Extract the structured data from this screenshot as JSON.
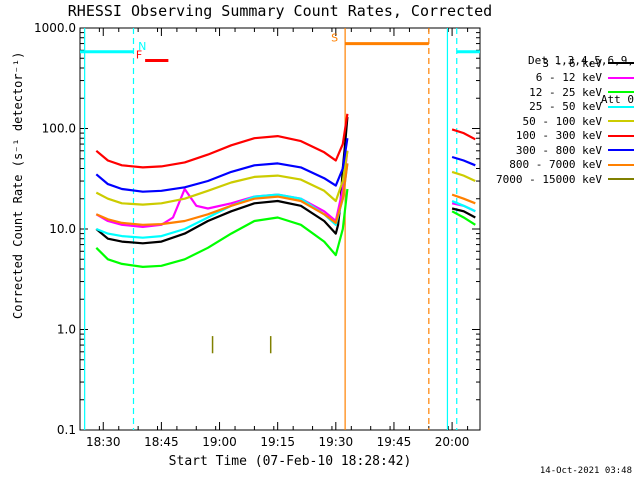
{
  "chart_data": {
    "type": "line",
    "title": "RHESSI Observing Summary Count Rates, Corrected",
    "xlabel": "Start Time (07-Feb-10 18:28:42)",
    "ylabel": "Corrected Count Rate (s⁻¹ detector⁻¹)",
    "y_scale": "log",
    "ylim": [
      0.1,
      1000
    ],
    "x_range_minutes": [
      18.4,
      20.12
    ],
    "x_tick_labels": [
      "18:30",
      "18:45",
      "19:00",
      "19:15",
      "19:30",
      "19:45",
      "20:00"
    ],
    "y_tick_labels": [
      "0.1",
      "1.0",
      "10.0",
      "100.0",
      "1000.0"
    ],
    "legend_header": [
      "Det 1,3,4,5,6,9,",
      "Att 0"
    ],
    "legend_position": "right-outside",
    "series": [
      {
        "name": "3 - 6 keV",
        "color": "#000000",
        "x": [
          18.47,
          18.52,
          18.58,
          18.67,
          18.75,
          18.85,
          18.95,
          19.05,
          19.15,
          19.25,
          19.35,
          19.45,
          19.5,
          19.51,
          19.52,
          19.53,
          19.54,
          19.55
        ],
        "y": [
          10,
          8,
          7.5,
          7.2,
          7.5,
          9,
          12,
          15,
          18,
          19,
          17,
          12,
          9,
          11,
          18,
          40,
          70,
          130
        ]
      },
      {
        "name": "6 - 12 keV",
        "color": "#ff00ff",
        "x": [
          18.47,
          18.52,
          18.58,
          18.67,
          18.75,
          18.8,
          18.85,
          18.9,
          18.95,
          19.05,
          19.15,
          19.25,
          19.35,
          19.45,
          19.5,
          19.53,
          19.55
        ],
        "y": [
          14,
          12,
          11,
          10.5,
          11,
          13,
          25,
          17,
          16,
          18,
          21,
          22,
          20,
          15,
          12,
          25,
          60
        ]
      },
      {
        "name": "12 - 25 keV",
        "color": "#00ff00",
        "x": [
          18.47,
          18.52,
          18.58,
          18.67,
          18.75,
          18.85,
          18.95,
          19.05,
          19.15,
          19.25,
          19.35,
          19.45,
          19.5,
          19.53,
          19.55
        ],
        "y": [
          6.5,
          5,
          4.5,
          4.2,
          4.3,
          5,
          6.5,
          9,
          12,
          13,
          11,
          7.5,
          5.5,
          10,
          25
        ]
      },
      {
        "name": "25 - 50 keV",
        "color": "#00ffff",
        "x": [
          18.47,
          18.52,
          18.58,
          18.67,
          18.75,
          18.85,
          18.95,
          19.05,
          19.15,
          19.25,
          19.35,
          19.45,
          19.5,
          19.53,
          19.55
        ],
        "y": [
          10,
          9,
          8.5,
          8.2,
          8.5,
          10,
          13,
          17,
          21,
          22,
          20,
          14,
          11,
          20,
          45
        ]
      },
      {
        "name": "50 - 100 keV",
        "color": "#cccc00",
        "x": [
          18.47,
          18.52,
          18.58,
          18.67,
          18.75,
          18.85,
          18.95,
          19.05,
          19.15,
          19.25,
          19.35,
          19.45,
          19.5,
          19.53,
          19.55
        ],
        "y": [
          23,
          20,
          18,
          17.5,
          18,
          20,
          24,
          29,
          33,
          34,
          31,
          24,
          19,
          30,
          60
        ]
      },
      {
        "name": "100 - 300 keV",
        "color": "#ff0000",
        "x": [
          18.47,
          18.52,
          18.58,
          18.67,
          18.75,
          18.85,
          18.95,
          19.05,
          19.15,
          19.25,
          19.35,
          19.45,
          19.5,
          19.53,
          19.55
        ],
        "y": [
          60,
          48,
          43,
          41,
          42,
          46,
          55,
          68,
          80,
          84,
          75,
          58,
          48,
          70,
          140
        ]
      },
      {
        "name": "300 - 800 keV",
        "color": "#0000ff",
        "x": [
          18.47,
          18.52,
          18.58,
          18.67,
          18.75,
          18.85,
          18.95,
          19.05,
          19.15,
          19.25,
          19.35,
          19.45,
          19.5,
          19.53,
          19.55
        ],
        "y": [
          35,
          28,
          25,
          23.5,
          24,
          26,
          30,
          37,
          43,
          45,
          41,
          32,
          27,
          40,
          80
        ]
      },
      {
        "name": "800 - 7000 keV",
        "color": "#ff8000",
        "x": [
          18.47,
          18.52,
          18.58,
          18.67,
          18.75,
          18.85,
          18.95,
          19.05,
          19.15,
          19.25,
          19.35,
          19.45,
          19.5,
          19.53,
          19.55
        ],
        "y": [
          14,
          12.5,
          11.5,
          11,
          11.2,
          12,
          14,
          17,
          20,
          21,
          19,
          14,
          11.5,
          20,
          45
        ]
      },
      {
        "name": "7000 - 15000 keV",
        "color": "#808000",
        "x": [],
        "y": []
      }
    ],
    "post_gap_series": [
      {
        "name": "3 - 6 keV",
        "x": [
          20.0,
          20.05,
          20.1
        ],
        "y": [
          16,
          15,
          13
        ]
      },
      {
        "name": "6 - 12 keV",
        "x": [
          20.0,
          20.05,
          20.1
        ],
        "y": [
          18,
          17,
          15
        ]
      },
      {
        "name": "12 - 25 keV",
        "x": [
          20.0,
          20.05,
          20.1
        ],
        "y": [
          15,
          13,
          11
        ]
      },
      {
        "name": "25 - 50 keV",
        "x": [
          20.0,
          20.05,
          20.1
        ],
        "y": [
          19,
          17,
          15
        ]
      },
      {
        "name": "50 - 100 keV",
        "x": [
          20.0,
          20.05,
          20.1
        ],
        "y": [
          37,
          34,
          30
        ]
      },
      {
        "name": "100 - 300 keV",
        "x": [
          20.0,
          20.05,
          20.1
        ],
        "y": [
          98,
          90,
          78
        ]
      },
      {
        "name": "300 - 800 keV",
        "x": [
          20.0,
          20.05,
          20.1
        ],
        "y": [
          52,
          48,
          43
        ]
      },
      {
        "name": "800 - 7000 keV",
        "x": [
          20.0,
          20.05,
          20.1
        ],
        "y": [
          22,
          20,
          18
        ]
      }
    ],
    "olive_spikes": [
      {
        "x": 18.97,
        "y": [
          0.58,
          0.86
        ]
      },
      {
        "x": 19.22,
        "y": [
          0.58,
          0.86
        ]
      }
    ],
    "flags": [
      {
        "label": "N",
        "color": "#00ffff",
        "level_y": 580,
        "segments": [
          [
            18.4,
            18.63
          ],
          [
            20.02,
            20.12
          ]
        ],
        "label_x": 18.65,
        "dashed_x": [
          18.63,
          20.02
        ],
        "solid_x": [
          18.42,
          19.98
        ]
      },
      {
        "label": "F",
        "color": "#ff0000",
        "level_y": 475,
        "segments": [
          [
            18.68,
            18.78
          ]
        ],
        "label_x": 18.64
      },
      {
        "label": "S",
        "color": "#ff8000",
        "level_y": 700,
        "segments": [
          [
            19.54,
            19.9
          ]
        ],
        "label_x": 19.48,
        "solid_x": [
          19.54
        ],
        "dashed_x": [
          19.9
        ]
      }
    ]
  },
  "stamp": "14-Oct-2021 03:48"
}
